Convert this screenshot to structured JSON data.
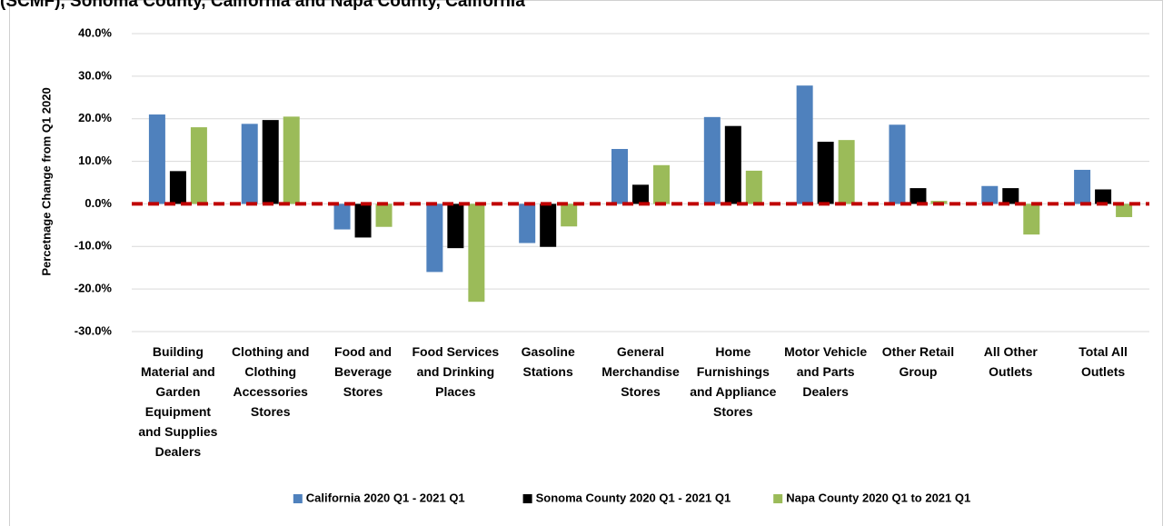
{
  "chart_data": {
    "type": "bar",
    "title": "(SCMF), Sonoma County, California and Napa County, California",
    "y_label": "Percetnage Change from Q1 2020",
    "categories": [
      "Building Material and Garden Equipment and Supplies Dealers",
      "Clothing and Clothing Accessories Stores",
      "Food and Beverage Stores",
      "Food Services and Drinking Places",
      "Gasoline Stations",
      "General Merchandise Stores",
      "Home Furnishings and Appliance Stores",
      "Motor Vehicle and Parts Dealers",
      "Other Retail Group",
      "All Other Outlets",
      "Total All Outlets"
    ],
    "series": [
      {
        "name": "California 2020 Q1 - 2021 Q1",
        "color": "#4f81bd",
        "values": [
          21.0,
          18.8,
          -6.0,
          -16.0,
          -9.2,
          12.9,
          20.4,
          27.8,
          18.6,
          4.2,
          8.0
        ]
      },
      {
        "name": "Sonoma County 2020 Q1 - 2021 Q1",
        "color": "#000000",
        "values": [
          7.7,
          19.7,
          -7.9,
          -10.4,
          -10.1,
          4.5,
          18.3,
          14.6,
          3.7,
          3.7,
          3.4
        ]
      },
      {
        "name": "Napa County 2020 Q1 to 2021 Q1",
        "color": "#9bbb59",
        "values": [
          18.0,
          20.5,
          -5.4,
          -23.0,
          -5.3,
          9.1,
          7.8,
          15.0,
          0.7,
          -7.2,
          -3.1
        ]
      }
    ],
    "ylim": [
      -30,
      40
    ],
    "yticks": [
      {
        "value": -30,
        "label": "-30.0%"
      },
      {
        "value": -20,
        "label": "-20.0%"
      },
      {
        "value": -10,
        "label": "-10.0%"
      },
      {
        "value": 0,
        "label": "0.0%"
      },
      {
        "value": 10,
        "label": "10.0%"
      },
      {
        "value": 20,
        "label": "20.0%"
      },
      {
        "value": 30,
        "label": "30.0%"
      },
      {
        "value": 40,
        "label": "40.0%"
      }
    ],
    "grid": true,
    "zero_line_color": "#c00000",
    "legend": "bottom"
  }
}
